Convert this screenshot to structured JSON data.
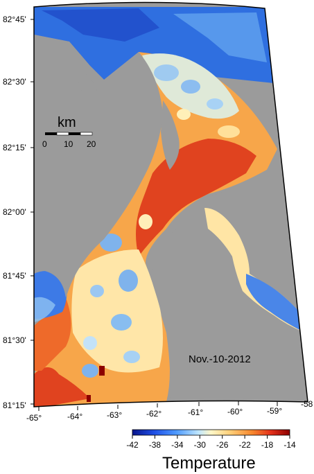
{
  "map": {
    "date_label": "Nov.-10-2012",
    "lat_labels": [
      "82°45'",
      "82°30'",
      "82°15'",
      "82°00'",
      "81°45'",
      "81°30'",
      "81°15'"
    ],
    "lon_labels": [
      "-65°",
      "-64°",
      "-63°",
      "-62°",
      "-61°",
      "-60°",
      "-59°",
      "-58"
    ],
    "scalebar": {
      "unit": "km",
      "ticks": [
        "0",
        "10",
        "20"
      ]
    },
    "colorbar": {
      "title": "Temperature",
      "ticks": [
        "-42",
        "-38",
        "-34",
        "-30",
        "-26",
        "-22",
        "-18",
        "-14"
      ],
      "min": -42,
      "max": -14,
      "colors": [
        "#08148c",
        "#1f50e6",
        "#4f9bff",
        "#bfe6ff",
        "#fff7c8",
        "#ffd07a",
        "#f7882e",
        "#e3301a",
        "#8c0000"
      ]
    },
    "land_color": "#9b9b9b"
  }
}
